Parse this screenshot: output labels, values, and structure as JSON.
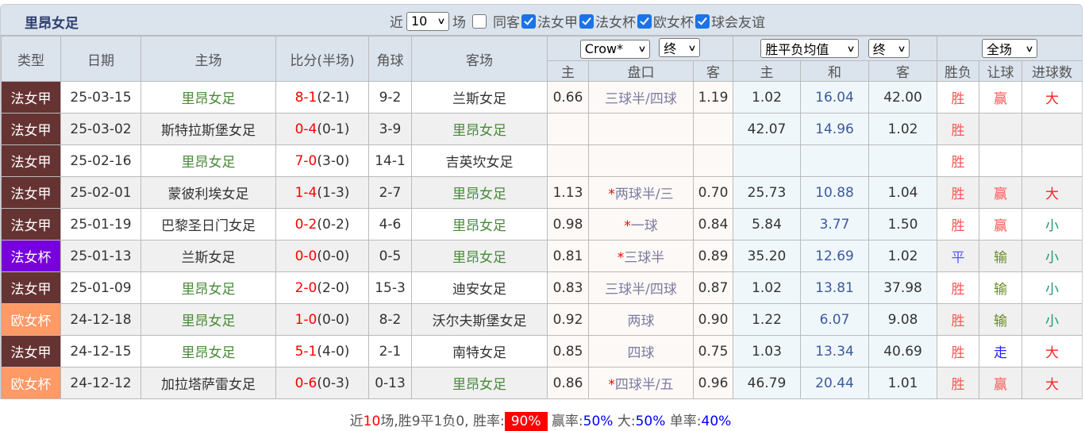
{
  "title": "里昂女足",
  "filters": {
    "prefix": "近",
    "count": "10",
    "suffix": "场",
    "options": [
      {
        "label": "同客",
        "checked": false
      },
      {
        "label": "法女甲",
        "checked": true
      },
      {
        "label": "法女杯",
        "checked": true
      },
      {
        "label": "欧女杯",
        "checked": true
      },
      {
        "label": "球会友谊",
        "checked": true
      }
    ]
  },
  "header": {
    "type": "类型",
    "date": "日期",
    "home": "主场",
    "score": "比分(半场)",
    "corner": "角球",
    "away": "客场",
    "company": "Crow*",
    "ah_stage": "终",
    "eu_type": "胜平负均值",
    "eu_stage": "终",
    "scope": "全场",
    "ah_home": "主",
    "ah_line": "盘口",
    "ah_away": "客",
    "eu_home": "主",
    "eu_draw": "和",
    "eu_away": "客",
    "res": "胜负",
    "ah_res": "让球",
    "ou_res": "进球数"
  },
  "colors": {
    "法女甲": "#663333",
    "法女杯": "#7700dd",
    "欧女杯": "#ff9966"
  },
  "rows": [
    {
      "type": "法女甲",
      "date": "25-03-15",
      "home": "里昂女足",
      "ft": "8-1",
      "ht": "(2-1)",
      "corner": "9-2",
      "away": "兰斯女足",
      "ah_h": "0.66",
      "star": "",
      "line": "三球半/四球",
      "ah_a": "1.19",
      "eu_h": "1.02",
      "eu_d": "16.04",
      "eu_a": "42.00",
      "res": "胜",
      "ah_r": "赢",
      "ou": "大",
      "lyon_home": true
    },
    {
      "type": "法女甲",
      "date": "25-03-02",
      "home": "斯特拉斯堡女足",
      "ft": "0-4",
      "ht": "(0-1)",
      "corner": "3-9",
      "away": "里昂女足",
      "ah_h": "",
      "star": "",
      "line": "",
      "ah_a": "",
      "eu_h": "42.07",
      "eu_d": "14.96",
      "eu_a": "1.02",
      "res": "胜",
      "ah_r": "",
      "ou": "",
      "lyon_home": false
    },
    {
      "type": "法女甲",
      "date": "25-02-16",
      "home": "里昂女足",
      "ft": "7-0",
      "ht": "(3-0)",
      "corner": "14-1",
      "away": "吉英坎女足",
      "ah_h": "",
      "star": "",
      "line": "",
      "ah_a": "",
      "eu_h": "",
      "eu_d": "",
      "eu_a": "",
      "res": "胜",
      "ah_r": "",
      "ou": "",
      "lyon_home": true
    },
    {
      "type": "法女甲",
      "date": "25-02-01",
      "home": "蒙彼利埃女足",
      "ft": "1-4",
      "ht": "(1-3)",
      "corner": "2-7",
      "away": "里昂女足",
      "ah_h": "1.13",
      "star": "*",
      "line": "两球半/三",
      "ah_a": "0.70",
      "eu_h": "25.73",
      "eu_d": "10.88",
      "eu_a": "1.04",
      "res": "胜",
      "ah_r": "赢",
      "ou": "大",
      "lyon_home": false
    },
    {
      "type": "法女甲",
      "date": "25-01-19",
      "home": "巴黎圣日门女足",
      "ft": "0-2",
      "ht": "(0-2)",
      "corner": "4-6",
      "away": "里昂女足",
      "ah_h": "0.98",
      "star": "*",
      "line": "一球",
      "ah_a": "0.84",
      "eu_h": "5.84",
      "eu_d": "3.77",
      "eu_a": "1.50",
      "res": "胜",
      "ah_r": "赢",
      "ou": "小",
      "lyon_home": false
    },
    {
      "type": "法女杯",
      "date": "25-01-13",
      "home": "兰斯女足",
      "ft": "0-0",
      "ht": "(0-0)",
      "corner": "0-5",
      "away": "里昂女足",
      "ah_h": "0.81",
      "star": "*",
      "line": "三球半",
      "ah_a": "0.89",
      "eu_h": "35.20",
      "eu_d": "12.69",
      "eu_a": "1.02",
      "res": "平",
      "ah_r": "输",
      "ou": "小",
      "lyon_home": false
    },
    {
      "type": "法女甲",
      "date": "25-01-09",
      "home": "里昂女足",
      "ft": "2-0",
      "ht": "(2-0)",
      "corner": "15-3",
      "away": "迪安女足",
      "ah_h": "0.83",
      "star": "",
      "line": "三球半/四球",
      "ah_a": "0.87",
      "eu_h": "1.02",
      "eu_d": "13.81",
      "eu_a": "37.98",
      "res": "胜",
      "ah_r": "输",
      "ou": "小",
      "lyon_home": true
    },
    {
      "type": "欧女杯",
      "date": "24-12-18",
      "home": "里昂女足",
      "ft": "1-0",
      "ht": "(0-0)",
      "corner": "8-2",
      "away": "沃尔夫斯堡女足",
      "ah_h": "0.92",
      "star": "",
      "line": "两球",
      "ah_a": "0.90",
      "eu_h": "1.22",
      "eu_d": "6.07",
      "eu_a": "9.08",
      "res": "胜",
      "ah_r": "输",
      "ou": "小",
      "lyon_home": true
    },
    {
      "type": "法女甲",
      "date": "24-12-15",
      "home": "里昂女足",
      "ft": "5-1",
      "ht": "(4-0)",
      "corner": "2-1",
      "away": "南特女足",
      "ah_h": "0.85",
      "star": "",
      "line": "四球",
      "ah_a": "0.75",
      "eu_h": "1.03",
      "eu_d": "13.34",
      "eu_a": "40.69",
      "res": "胜",
      "ah_r": "走",
      "ou": "大",
      "lyon_home": true
    },
    {
      "type": "欧女杯",
      "date": "24-12-12",
      "home": "加拉塔萨雷女足",
      "ft": "0-6",
      "ht": "(0-3)",
      "corner": "0-13",
      "away": "里昂女足",
      "ah_h": "0.86",
      "star": "*",
      "line": "四球半/五",
      "ah_a": "0.96",
      "eu_h": "46.79",
      "eu_d": "20.44",
      "eu_a": "1.01",
      "res": "胜",
      "ah_r": "赢",
      "ou": "大",
      "lyon_home": false
    }
  ],
  "footer": {
    "t1": "近",
    "n": "10",
    "t2": "场,胜9平1负0, 胜率:",
    "win": "90%",
    "t3": "赢率:",
    "ah": "50%",
    "t4": "大:",
    "big": "50%",
    "t5": "单率:",
    "odd": "40%"
  }
}
